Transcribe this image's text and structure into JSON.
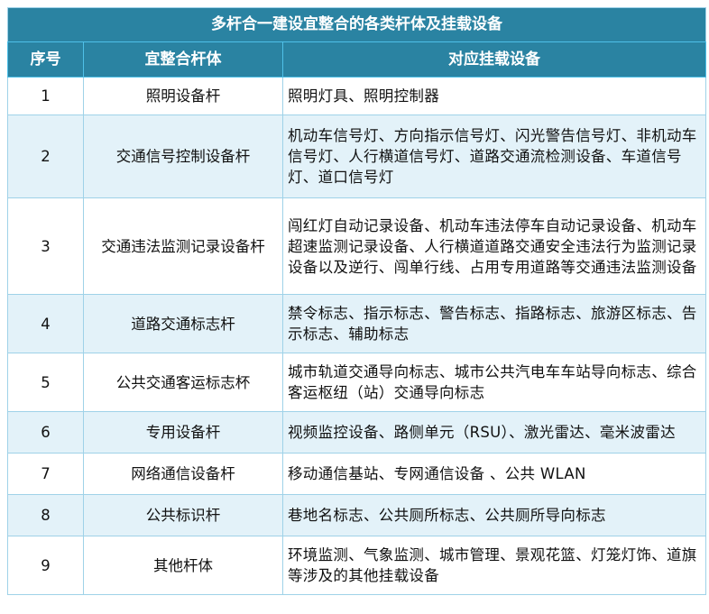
{
  "title": "多杆合一建设宜整合的各类杆体及挂载设备",
  "headers": [
    "序号",
    "宜整合杆体",
    "对应挂载设备"
  ],
  "rows": [
    {
      "no": "1",
      "pole": "照明设备杆",
      "equip": "照明灯具、照明控制器"
    },
    {
      "no": "2",
      "pole": "交通信号控制设备杆",
      "equip": "机动车信号灯、方向指示信号灯、闪光警告信号灯、非机动车信号灯、人行横道信号灯、道路交通流检测设备、车道信号灯、道口信号灯"
    },
    {
      "no": "3",
      "pole": "交通违法监测记录设备杆",
      "equip": "闯红灯自动记录设备、机动车违法停车自动记录设备、机动车超速监测记录设备、人行横道道路交通安全违法行为监测记录设备以及逆行、闯单行线、占用专用道路等交通违法监测设备"
    },
    {
      "no": "4",
      "pole": "道路交通标志杆",
      "equip": "禁令标志、指示标志、警告标志、指路标志、旅游区标志、告示标志、辅助标志"
    },
    {
      "no": "5",
      "pole": "公共交通客运标志杯",
      "equip": "城市轨道交通导向标志、城市公共汽电车车站导向标志、综合客运枢纽（站）交通导向标志"
    },
    {
      "no": "6",
      "pole": "专用设备杆",
      "equip": "视频监控设备、路侧单元（RSU）、激光雷达、毫米波雷达"
    },
    {
      "no": "7",
      "pole": "网络通信设备杆",
      "equip": "移动通信基站、专网通信设备 、公共 WLAN"
    },
    {
      "no": "8",
      "pole": "公共标识杆",
      "equip": "巷地名标志、公共厕所标志、公共厕所导向标志"
    },
    {
      "no": "9",
      "pole": "其他杆体",
      "equip": "环境监测、气象监测、城市管理、景观花篮、灯笼灯饰、道旗等涉及的其他挂载设备"
    }
  ],
  "colors": {
    "header_bg": "#2a83a2",
    "alt_row_bg": "#e3f2f9",
    "border": "#9fd2e8"
  }
}
